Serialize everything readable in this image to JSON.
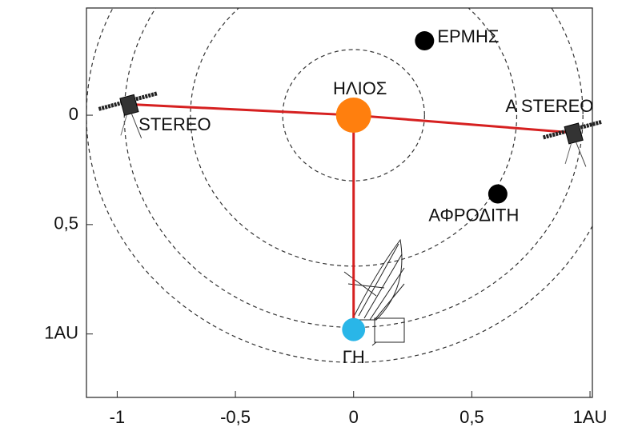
{
  "chart_data": {
    "type": "scatter",
    "xlim": [
      -1.13,
      1.01
    ],
    "ylim": [
      -0.49,
      1.29
    ],
    "y_inverted": true,
    "xticks": [
      -1,
      {
        "value": -0.5,
        "label": "-0,5"
      },
      0,
      {
        "value": 0.5,
        "label": "0,5"
      },
      {
        "value": 1,
        "label": "1AU"
      }
    ],
    "yticks": [
      0,
      {
        "value": 0.5,
        "label": "0,5"
      },
      {
        "value": 1,
        "label": "1AU"
      }
    ],
    "orbits": [
      0.3,
      0.69,
      0.97,
      1.13
    ],
    "link_color": "#d62020",
    "points": [
      {
        "name": "ΗΛΙΟΣ",
        "x": 0,
        "y": 0,
        "color": "#ff7f0e",
        "kind": "star"
      },
      {
        "name": "ΕΡΜΗΣ",
        "x": 0.3,
        "y": -0.34,
        "color": "#000000",
        "kind": "planet"
      },
      {
        "name": "ΑΦΡΟΔΙΤΗ",
        "x": 0.61,
        "y": 0.36,
        "color": "#000000",
        "kind": "planet"
      },
      {
        "name": "ΓΗ",
        "x": 0,
        "y": 0.98,
        "color": "#29b6e8",
        "kind": "planet",
        "linked": true
      },
      {
        "name": "STEREO",
        "x": -0.95,
        "y": -0.05,
        "color": "#333333",
        "kind": "craft",
        "linked": true
      },
      {
        "name": "A  STEREO",
        "x": 0.93,
        "y": 0.08,
        "color": "#333333",
        "kind": "craft",
        "linked": true
      }
    ]
  }
}
